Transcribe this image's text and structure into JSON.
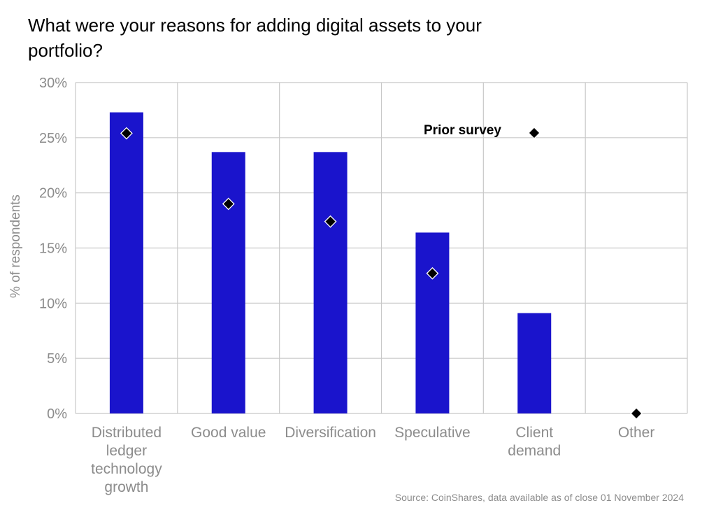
{
  "title": "What were your reasons for adding digital assets to your portfolio?",
  "source": "Source: CoinShares, data available as of close 01 November 2024",
  "colors": {
    "bar": "#1a14cc",
    "marker": "#000000",
    "grid": "#c8c8c8",
    "text": "#8c8c8c"
  },
  "chart_data": {
    "type": "bar",
    "categories": [
      [
        "Distributed",
        "ledger",
        "technology",
        "growth"
      ],
      [
        "Good value"
      ],
      [
        "Diversification"
      ],
      [
        "Speculative"
      ],
      [
        "Client",
        "demand"
      ],
      [
        "Other"
      ]
    ],
    "series": [
      {
        "values": [
          27.3,
          23.7,
          23.7,
          16.4,
          9.1,
          0
        ]
      },
      {
        "name": "Prior survey",
        "type": "scatter",
        "values": [
          25.4,
          19.0,
          17.4,
          12.7,
          null,
          0
        ]
      }
    ],
    "ylabel": "% of respondents",
    "ylim": [
      0,
      30
    ],
    "yticks": [
      "0%",
      "5%",
      "10%",
      "15%",
      "20%",
      "25%",
      "30%"
    ],
    "ytick_values": [
      0,
      5,
      10,
      15,
      20,
      25,
      30
    ],
    "grid": true,
    "legend": {
      "label": "Prior survey",
      "placement": "top-right"
    }
  }
}
